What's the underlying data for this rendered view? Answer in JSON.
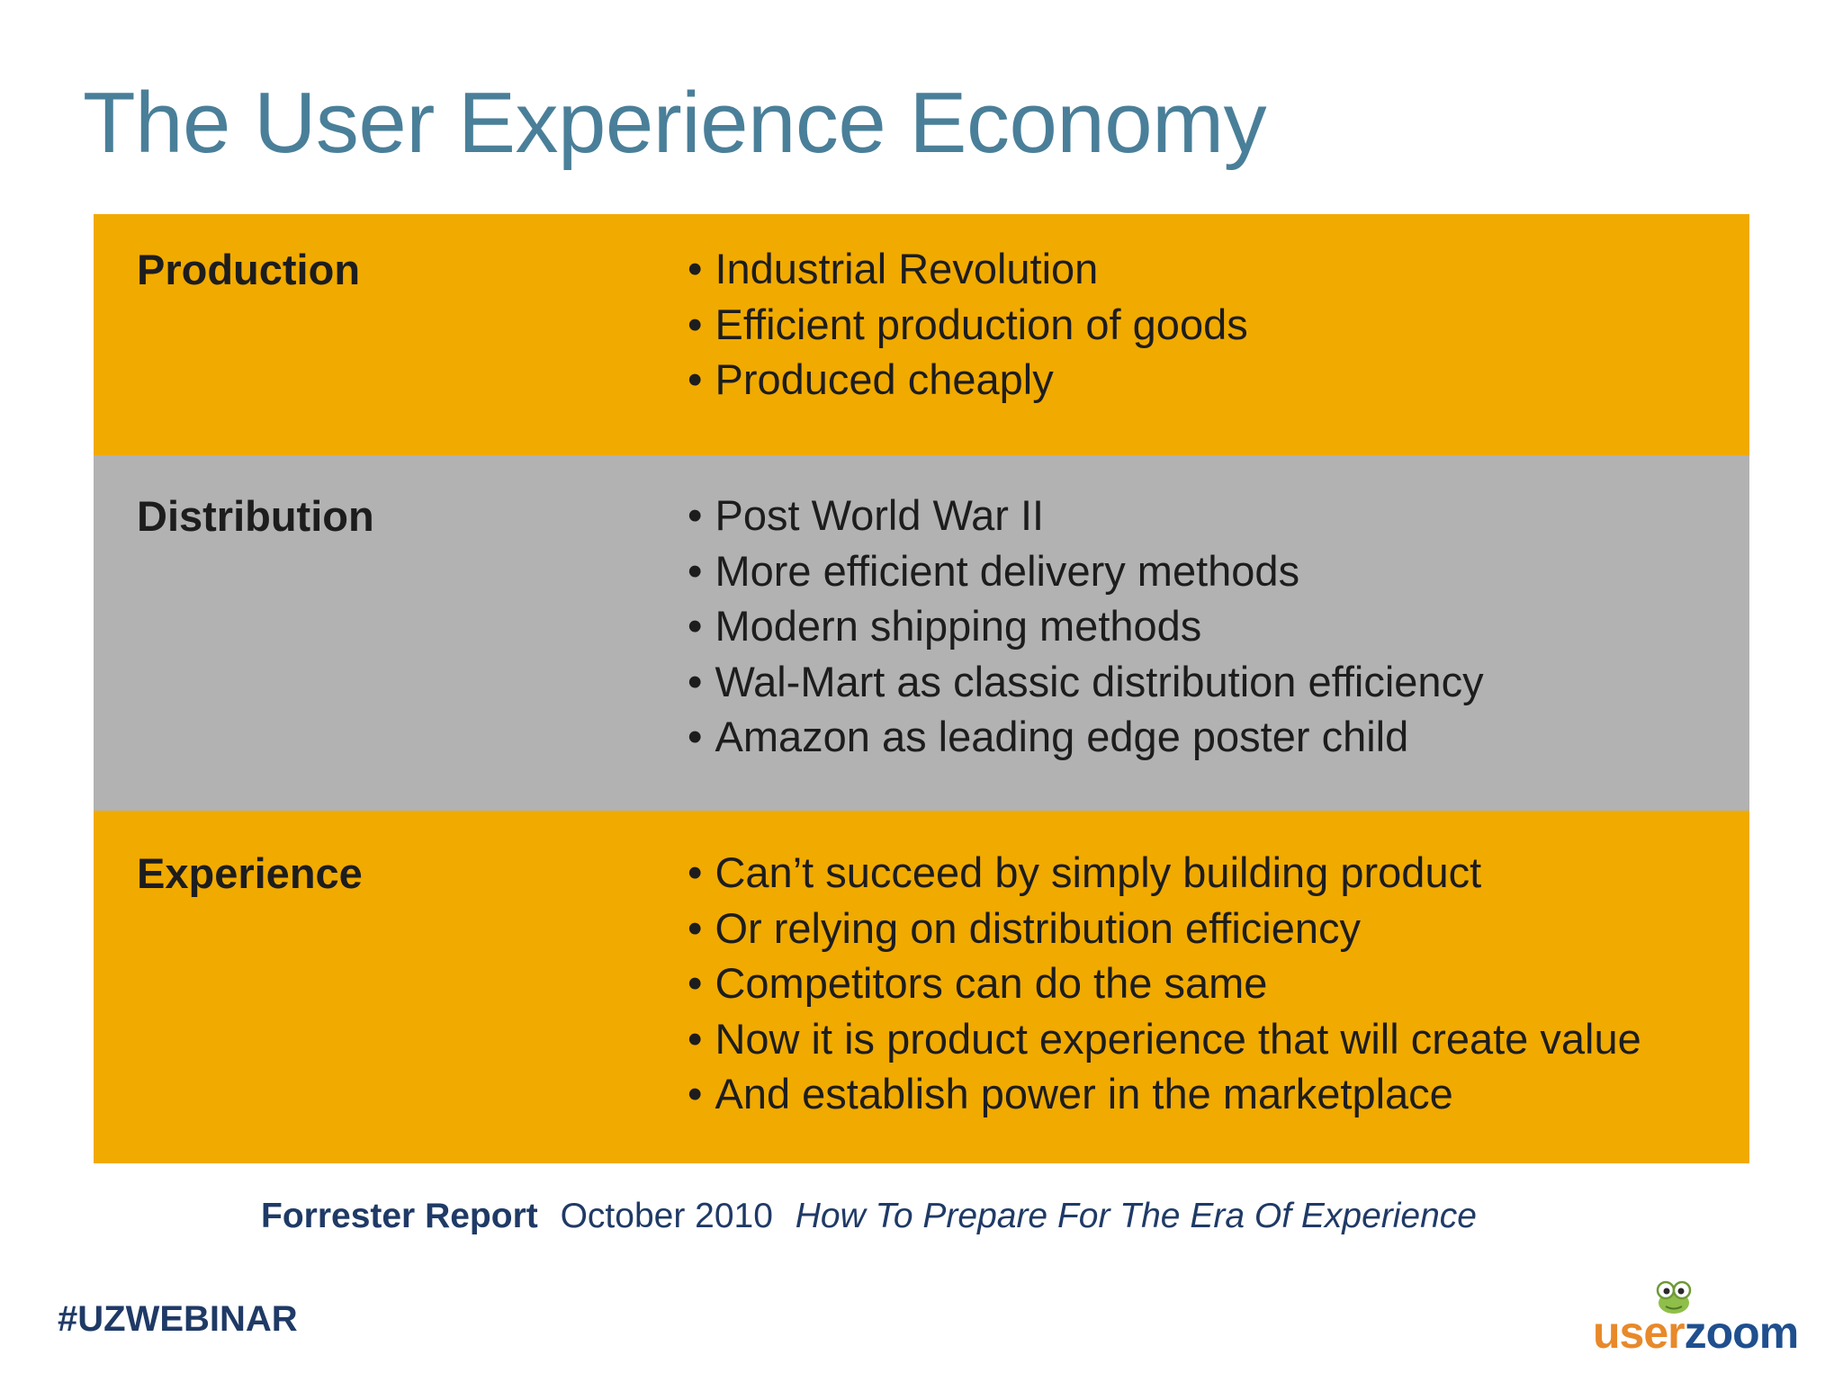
{
  "slide": {
    "title": "The User Experience Economy"
  },
  "colors": {
    "title": "#4a7f99",
    "orange_row": "#f1aa00",
    "gray_row": "#b1b2b1",
    "citation": "#1f3a66",
    "logo_orange": "#e8892a",
    "logo_blue": "#1f4f8f"
  },
  "table": {
    "rows": [
      {
        "label": "Production",
        "color": "#f1aa00",
        "items": [
          "Industrial Revolution",
          "Efficient production of goods",
          "Produced cheaply"
        ]
      },
      {
        "label": "Distribution",
        "color": "#b1b2b1",
        "items": [
          "Post World War II",
          "More efficient delivery methods",
          "Modern shipping methods",
          "Wal-Mart as classic distribution efficiency",
          "Amazon as leading edge poster child"
        ]
      },
      {
        "label": "Experience",
        "color": "#f1aa00",
        "items": [
          "Can’t succeed by simply building product",
          "Or relying on distribution efficiency",
          "Competitors can do the same",
          "Now it is product experience that will create value",
          "And establish power in the marketplace"
        ]
      }
    ]
  },
  "citation": {
    "source": "Forrester Report",
    "date": "October 2010",
    "report_title": "How To Prepare For The Era Of Experience"
  },
  "footer": {
    "hashtag": "#UZWEBINAR",
    "logo": {
      "part1": "user",
      "part2": "zoom",
      "mascot_icon": "frog-mascot-icon"
    }
  }
}
